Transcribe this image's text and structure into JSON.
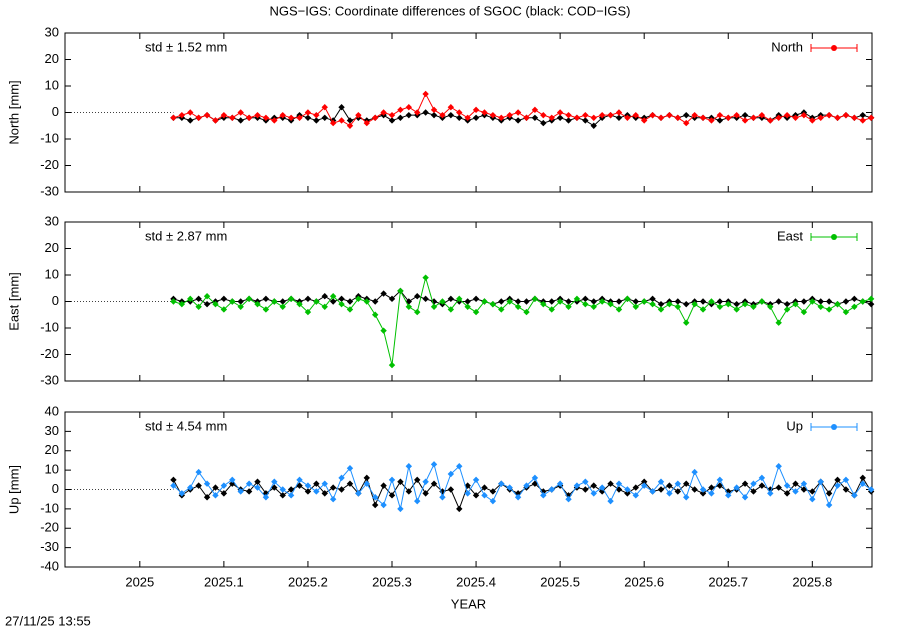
{
  "title": "NGS−IGS: Coordinate differences of SGOC (black: COD−IGS)",
  "timestamp": "27/11/25 13:55",
  "chart_data": [
    {
      "type": "line",
      "ylabel": "North [mm]",
      "annotation": "std ± 1.52 mm",
      "xlim": [
        2024.911,
        2025.871
      ],
      "xticks": [
        2025,
        2025.1,
        2025.2,
        2025.3,
        2025.4,
        2025.5,
        2025.6,
        2025.7,
        2025.8
      ],
      "ylim": [
        -30,
        30
      ],
      "yticks": [
        -30,
        -20,
        -10,
        0,
        10,
        20,
        30
      ],
      "legend": "top-right",
      "x": [
        2025.04,
        2025.05,
        2025.06,
        2025.07,
        2025.08,
        2025.09,
        2025.1,
        2025.11,
        2025.12,
        2025.13,
        2025.14,
        2025.15,
        2025.16,
        2025.17,
        2025.18,
        2025.19,
        2025.2,
        2025.21,
        2025.22,
        2025.23,
        2025.24,
        2025.25,
        2025.26,
        2025.27,
        2025.28,
        2025.29,
        2025.3,
        2025.31,
        2025.32,
        2025.33,
        2025.34,
        2025.35,
        2025.36,
        2025.37,
        2025.38,
        2025.39,
        2025.4,
        2025.41,
        2025.42,
        2025.43,
        2025.44,
        2025.45,
        2025.46,
        2025.47,
        2025.48,
        2025.49,
        2025.5,
        2025.51,
        2025.52,
        2025.53,
        2025.54,
        2025.55,
        2025.56,
        2025.57,
        2025.58,
        2025.59,
        2025.6,
        2025.61,
        2025.62,
        2025.63,
        2025.64,
        2025.65,
        2025.66,
        2025.67,
        2025.68,
        2025.69,
        2025.7,
        2025.71,
        2025.72,
        2025.73,
        2025.74,
        2025.75,
        2025.76,
        2025.77,
        2025.78,
        2025.79,
        2025.8,
        2025.81,
        2025.82,
        2025.83,
        2025.84,
        2025.85,
        2025.86,
        2025.87
      ],
      "series": [
        {
          "color": "#000000",
          "values": [
            -2,
            -2,
            -3,
            -2,
            -1,
            -3,
            -2,
            -2,
            -3,
            -2,
            -2,
            -3,
            -2,
            -2,
            -3,
            -1,
            -2,
            -3,
            -2,
            -3,
            2,
            -3,
            -2,
            -3,
            -2,
            -1,
            -3,
            -2,
            -1,
            -1,
            0,
            -1,
            -2,
            -1,
            -2,
            -3,
            -2,
            -1,
            -2,
            -3,
            -2,
            -3,
            -2,
            -2,
            -4,
            -3,
            -2,
            -3,
            -2,
            -3,
            -5,
            -2,
            -1,
            -2,
            -1,
            -2,
            -2,
            -1,
            -2,
            -1,
            -2,
            -1,
            -2,
            -2,
            -2,
            -3,
            -2,
            -2,
            -1,
            -2,
            -2,
            -3,
            -1,
            -2,
            -1,
            0,
            -2,
            -1,
            -1,
            -2,
            -1,
            -2,
            -1,
            -2
          ]
        },
        {
          "name": "North",
          "color": "#ff0000",
          "values": [
            -2,
            -1,
            0,
            -2,
            -1,
            -3,
            -1,
            -2,
            0,
            -2,
            -1,
            -2,
            -3,
            -1,
            -2,
            -2,
            0,
            -1,
            2,
            -4,
            -3,
            -5,
            -1,
            -4,
            -2,
            0,
            -1,
            1,
            2,
            0,
            7,
            1,
            -1,
            2,
            0,
            -2,
            1,
            0,
            -1,
            -2,
            -1,
            0,
            -2,
            1,
            -1,
            -2,
            0,
            -1,
            -2,
            -1,
            -2,
            -1,
            -1,
            0,
            -2,
            -1,
            -3,
            -1,
            -2,
            -1,
            -2,
            -4,
            -1,
            -2,
            -3,
            -1,
            -2,
            -1,
            -3,
            -2,
            -1,
            -3,
            -2,
            -1,
            -2,
            -1,
            -3,
            -2,
            -1,
            -2,
            -1,
            -2,
            -3,
            -2
          ]
        }
      ]
    },
    {
      "type": "line",
      "ylabel": "East [mm]",
      "annotation": "std ± 2.87 mm",
      "xlim": [
        2024.911,
        2025.871
      ],
      "xticks": [
        2025,
        2025.1,
        2025.2,
        2025.3,
        2025.4,
        2025.5,
        2025.6,
        2025.7,
        2025.8
      ],
      "ylim": [
        -30,
        30
      ],
      "yticks": [
        -30,
        -20,
        -10,
        0,
        10,
        20,
        30
      ],
      "legend": "top-right",
      "x": [
        2025.04,
        2025.05,
        2025.06,
        2025.07,
        2025.08,
        2025.09,
        2025.1,
        2025.11,
        2025.12,
        2025.13,
        2025.14,
        2025.15,
        2025.16,
        2025.17,
        2025.18,
        2025.19,
        2025.2,
        2025.21,
        2025.22,
        2025.23,
        2025.24,
        2025.25,
        2025.26,
        2025.27,
        2025.28,
        2025.29,
        2025.3,
        2025.31,
        2025.32,
        2025.33,
        2025.34,
        2025.35,
        2025.36,
        2025.37,
        2025.38,
        2025.39,
        2025.4,
        2025.41,
        2025.42,
        2025.43,
        2025.44,
        2025.45,
        2025.46,
        2025.47,
        2025.48,
        2025.49,
        2025.5,
        2025.51,
        2025.52,
        2025.53,
        2025.54,
        2025.55,
        2025.56,
        2025.57,
        2025.58,
        2025.59,
        2025.6,
        2025.61,
        2025.62,
        2025.63,
        2025.64,
        2025.65,
        2025.66,
        2025.67,
        2025.68,
        2025.69,
        2025.7,
        2025.71,
        2025.72,
        2025.73,
        2025.74,
        2025.75,
        2025.76,
        2025.77,
        2025.78,
        2025.79,
        2025.8,
        2025.81,
        2025.82,
        2025.83,
        2025.84,
        2025.85,
        2025.86,
        2025.87
      ],
      "series": [
        {
          "color": "#000000",
          "values": [
            1,
            0,
            0,
            1,
            -1,
            0,
            1,
            0,
            0,
            1,
            0,
            1,
            0,
            0,
            1,
            0,
            1,
            0,
            2,
            0,
            1,
            0,
            2,
            1,
            0,
            3,
            1,
            4,
            0,
            2,
            1,
            0,
            -1,
            1,
            0,
            0,
            1,
            0,
            -1,
            0,
            1,
            0,
            0,
            1,
            0,
            0,
            1,
            0,
            0,
            1,
            0,
            1,
            0,
            0,
            1,
            0,
            0,
            1,
            -1,
            0,
            0,
            -1,
            0,
            0,
            -1,
            0,
            0,
            -1,
            0,
            -1,
            0,
            -1,
            0,
            -1,
            0,
            0,
            1,
            0,
            0,
            -1,
            0,
            1,
            0,
            -1
          ]
        },
        {
          "name": "East",
          "color": "#00c000",
          "values": [
            0,
            -1,
            1,
            -2,
            2,
            -1,
            -3,
            0,
            -2,
            1,
            -1,
            -3,
            0,
            -2,
            1,
            -1,
            -4,
            0,
            -2,
            2,
            -1,
            -3,
            1,
            0,
            -5,
            -11,
            -24,
            4,
            -2,
            -4,
            9,
            -2,
            0,
            -3,
            1,
            -2,
            -4,
            0,
            -1,
            -3,
            0,
            -2,
            -4,
            1,
            -1,
            -3,
            0,
            -2,
            1,
            -1,
            -2,
            0,
            -1,
            -3,
            1,
            -2,
            0,
            -1,
            -3,
            -1,
            -2,
            -8,
            -1,
            -3,
            0,
            -2,
            -1,
            -3,
            -1,
            -2,
            0,
            -2,
            -8,
            -3,
            -1,
            -4,
            0,
            -2,
            -3,
            -1,
            -4,
            -2,
            0,
            1
          ]
        }
      ]
    },
    {
      "type": "line",
      "ylabel": "Up [mm]",
      "xlabel": "YEAR",
      "annotation": "std ± 4.54 mm",
      "xlim": [
        2024.911,
        2025.871
      ],
      "xticks": [
        2025,
        2025.1,
        2025.2,
        2025.3,
        2025.4,
        2025.5,
        2025.6,
        2025.7,
        2025.8
      ],
      "ylim": [
        -40,
        40
      ],
      "yticks": [
        -40,
        -30,
        -20,
        -10,
        0,
        10,
        20,
        30,
        40
      ],
      "legend": "top-right",
      "x": [
        2025.04,
        2025.05,
        2025.06,
        2025.07,
        2025.08,
        2025.09,
        2025.1,
        2025.11,
        2025.12,
        2025.13,
        2025.14,
        2025.15,
        2025.16,
        2025.17,
        2025.18,
        2025.19,
        2025.2,
        2025.21,
        2025.22,
        2025.23,
        2025.24,
        2025.25,
        2025.26,
        2025.27,
        2025.28,
        2025.29,
        2025.3,
        2025.31,
        2025.32,
        2025.33,
        2025.34,
        2025.35,
        2025.36,
        2025.37,
        2025.38,
        2025.39,
        2025.4,
        2025.41,
        2025.42,
        2025.43,
        2025.44,
        2025.45,
        2025.46,
        2025.47,
        2025.48,
        2025.49,
        2025.5,
        2025.51,
        2025.52,
        2025.53,
        2025.54,
        2025.55,
        2025.56,
        2025.57,
        2025.58,
        2025.59,
        2025.6,
        2025.61,
        2025.62,
        2025.63,
        2025.64,
        2025.65,
        2025.66,
        2025.67,
        2025.68,
        2025.69,
        2025.7,
        2025.71,
        2025.72,
        2025.73,
        2025.74,
        2025.75,
        2025.76,
        2025.77,
        2025.78,
        2025.79,
        2025.8,
        2025.81,
        2025.82,
        2025.83,
        2025.84,
        2025.85,
        2025.86,
        2025.87
      ],
      "series": [
        {
          "color": "#000000",
          "values": [
            5,
            -3,
            0,
            2,
            -4,
            1,
            -2,
            3,
            0,
            -1,
            4,
            -2,
            1,
            -3,
            0,
            2,
            -1,
            3,
            -2,
            1,
            0,
            3,
            -2,
            6,
            -8,
            2,
            -3,
            4,
            -1,
            5,
            -2,
            3,
            -1,
            0,
            -10,
            2,
            -3,
            1,
            -1,
            3,
            0,
            -2,
            1,
            3,
            -1,
            0,
            2,
            -3,
            1,
            0,
            2,
            -1,
            3,
            0,
            -2,
            1,
            4,
            -1,
            0,
            2,
            -1,
            3,
            0,
            -2,
            1,
            2,
            -1,
            0,
            3,
            -1,
            2,
            0,
            1,
            -2,
            3,
            0,
            -1,
            4,
            -2,
            5,
            0,
            -3,
            6,
            -1
          ]
        },
        {
          "name": "Up",
          "color": "#1e90ff",
          "values": [
            2,
            -2,
            1,
            9,
            3,
            -3,
            2,
            5,
            -1,
            3,
            1,
            -4,
            4,
            0,
            -3,
            5,
            2,
            -1,
            3,
            -5,
            6,
            11,
            -2,
            3,
            -4,
            -8,
            5,
            -10,
            12,
            -6,
            4,
            13,
            -4,
            8,
            12,
            -2,
            5,
            -3,
            -6,
            3,
            1,
            -4,
            2,
            6,
            -3,
            0,
            3,
            -5,
            2,
            4,
            -2,
            1,
            -6,
            3,
            0,
            -3,
            2,
            -1,
            4,
            -2,
            3,
            -4,
            9,
            0,
            -2,
            5,
            -3,
            1,
            -4,
            3,
            6,
            -2,
            12,
            2,
            -1,
            3,
            -5,
            4,
            -8,
            2,
            5,
            -3,
            3,
            0
          ]
        }
      ]
    }
  ]
}
